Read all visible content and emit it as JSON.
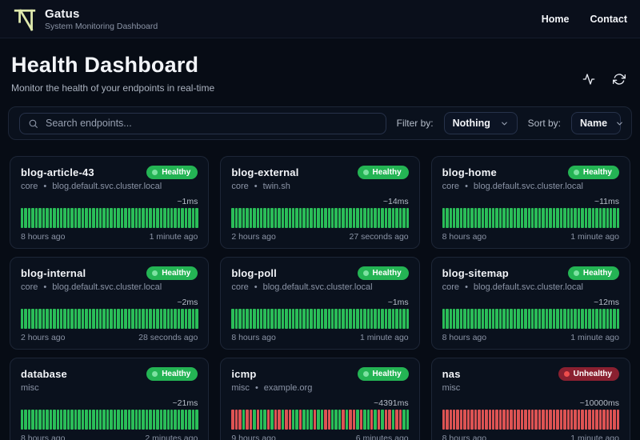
{
  "app": {
    "name": "Gatus",
    "tagline": "System Monitoring Dashboard"
  },
  "nav": {
    "items": [
      {
        "label": "Home"
      },
      {
        "label": "Contact"
      }
    ]
  },
  "hero": {
    "title": "Health Dashboard",
    "subtitle": "Monitor the health of your endpoints in real-time"
  },
  "toolbar": {
    "search_placeholder": "Search endpoints...",
    "filter_label": "Filter by:",
    "filter_value": "Nothing",
    "sort_label": "Sort by:",
    "sort_value": "Name"
  },
  "chart": {
    "bar_count": 50
  },
  "colors": {
    "bar_green": "#2abd58",
    "bar_red": "#dd5353",
    "healthy_badge": "#24b454",
    "healthy_dot": "#7ce2a1",
    "unhealthy_badge": "#8a2030",
    "unhealthy_dot": "#ef4d4d",
    "logo": "#dfe9ad"
  },
  "cards": [
    {
      "name": "blog-article-43",
      "status": "Healthy",
      "group": "core",
      "separator": "•",
      "host": "blog.default.svc.cluster.local",
      "latency": "~1ms",
      "first_check": "8 hours ago",
      "last_check": "1 minute ago",
      "bars": "G"
    },
    {
      "name": "blog-external",
      "status": "Healthy",
      "group": "core",
      "separator": "•",
      "host": "twin.sh",
      "latency": "~14ms",
      "first_check": "2 hours ago",
      "last_check": "27 seconds ago",
      "bars": "G"
    },
    {
      "name": "blog-home",
      "status": "Healthy",
      "group": "core",
      "separator": "•",
      "host": "blog.default.svc.cluster.local",
      "latency": "~11ms",
      "first_check": "8 hours ago",
      "last_check": "1 minute ago",
      "bars": "G"
    },
    {
      "name": "blog-internal",
      "status": "Healthy",
      "group": "core",
      "separator": "•",
      "host": "blog.default.svc.cluster.local",
      "latency": "~2ms",
      "first_check": "2 hours ago",
      "last_check": "28 seconds ago",
      "bars": "G"
    },
    {
      "name": "blog-poll",
      "status": "Healthy",
      "group": "core",
      "separator": "•",
      "host": "blog.default.svc.cluster.local",
      "latency": "~1ms",
      "first_check": "8 hours ago",
      "last_check": "1 minute ago",
      "bars": "G"
    },
    {
      "name": "blog-sitemap",
      "status": "Healthy",
      "group": "core",
      "separator": "•",
      "host": "blog.default.svc.cluster.local",
      "latency": "~12ms",
      "first_check": "8 hours ago",
      "last_check": "1 minute ago",
      "bars": "G"
    },
    {
      "name": "database",
      "status": "Healthy",
      "group": "misc",
      "separator": "",
      "host": "",
      "latency": "~21ms",
      "first_check": "8 hours ago",
      "last_check": "2 minutes ago",
      "bars": "G"
    },
    {
      "name": "icmp",
      "status": "Healthy",
      "group": "misc",
      "separator": "•",
      "host": "example.org",
      "latency": "~4391ms",
      "first_check": "9 hours ago",
      "last_check": "6 minutes ago",
      "bars": "RRRGRRGRGGRGRRGRRGGRGGGRGGRRGGGRGRRGRGGRGRGRRGRRGG"
    },
    {
      "name": "nas",
      "status": "Unhealthy",
      "group": "misc",
      "separator": "",
      "host": "",
      "latency": "~10000ms",
      "first_check": "8 hours ago",
      "last_check": "1 minute ago",
      "bars": "R"
    }
  ]
}
